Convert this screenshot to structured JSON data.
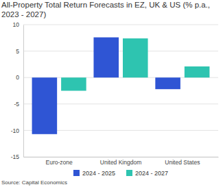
{
  "chart_data": {
    "type": "bar",
    "title": "All-Property Total Return Forecasts in EZ, UK & US (% p.a., 2023 - 2027)",
    "categories": [
      "Euro-zone",
      "United Kingdom",
      "United States"
    ],
    "series": [
      {
        "name": "2024 - 2025",
        "color": "#2f55d4",
        "values": [
          -10.7,
          7.6,
          -2.2
        ]
      },
      {
        "name": "2024 - 2027",
        "color": "#2ec4b0",
        "values": [
          -2.5,
          7.4,
          2.1
        ]
      }
    ],
    "ylim": [
      -15,
      10
    ],
    "yticks": [
      -15,
      -10,
      -5,
      0,
      5,
      10
    ],
    "grid": true,
    "legend": "bottom",
    "source": "Source: Capital Economics"
  }
}
